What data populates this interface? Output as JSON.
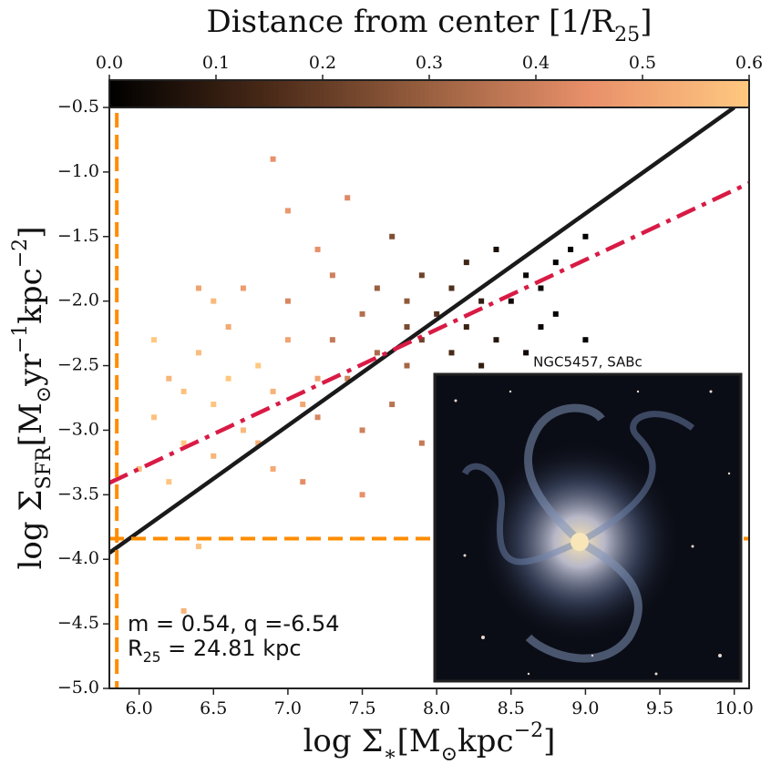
{
  "chart_data": {
    "type": "scatter",
    "colorbar_label": [
      {
        "text": "Distance from center [1/R"
      },
      {
        "text": "25",
        "shift": "sub"
      },
      {
        "text": "]"
      }
    ],
    "xlabel": [
      {
        "text": "log Σ"
      },
      {
        "text": "∗",
        "shift": "sub"
      },
      {
        "text": "[M"
      },
      {
        "text": "⊙",
        "shift": "sub"
      },
      {
        "text": "kpc"
      },
      {
        "text": "−2",
        "shift": "sup"
      },
      {
        "text": "]"
      }
    ],
    "ylabel": [
      {
        "text": "log Σ"
      },
      {
        "text": "SFR",
        "shift": "sub"
      },
      {
        "text": "[M"
      },
      {
        "text": "⊙",
        "shift": "sub"
      },
      {
        "text": "yr"
      },
      {
        "text": "−1",
        "shift": "sup"
      },
      {
        "text": "kpc"
      },
      {
        "text": "−2",
        "shift": "sup"
      },
      {
        "text": "]"
      }
    ],
    "xlim": [
      5.8,
      10.1
    ],
    "ylim": [
      -5.0,
      -0.5
    ],
    "xticks": [
      {
        "value": 6.0,
        "label": "6.0"
      },
      6.5,
      {
        "value": 7.0,
        "label": "7.0"
      },
      7.5,
      {
        "value": 8.0,
        "label": "8.0"
      },
      8.5,
      {
        "value": 9.0,
        "label": "9.0"
      },
      9.5,
      {
        "value": 10.0,
        "label": "10.0"
      }
    ],
    "yticks": [
      {
        "value": -5.0,
        "label": "−5.0"
      },
      {
        "value": -4.5,
        "label": "−4.5"
      },
      {
        "value": -4.0,
        "label": "−4.0"
      },
      {
        "value": -3.5,
        "label": "−3.5"
      },
      {
        "value": -3.0,
        "label": "−3.0"
      },
      {
        "value": -2.5,
        "label": "−2.5"
      },
      {
        "value": -2.0,
        "label": "−2.0"
      },
      {
        "value": -1.5,
        "label": "−1.5"
      },
      {
        "value": -1.0,
        "label": "−1.0"
      },
      {
        "value": -0.5,
        "label": "−0.5"
      }
    ],
    "clim": [
      0.0,
      0.6
    ],
    "cticks": [
      {
        "value": 0.0,
        "label": "0.0"
      },
      0.1,
      0.2,
      0.3,
      0.4,
      0.5,
      0.6
    ],
    "colormap": [
      "#000000",
      "#4a2a18",
      "#9a6040",
      "#e8906a",
      "#ffc880"
    ],
    "series": [
      {
        "x": [
          6.1,
          6.2,
          6.3,
          6.4,
          6.5,
          6.6,
          6.7,
          6.8,
          6.9,
          7.0,
          6.3,
          6.5,
          6.6,
          6.8,
          7.1,
          6.0,
          6.2,
          6.4,
          6.7,
          7.0,
          6.9,
          6.5,
          7.2,
          6.9,
          6.1,
          6.3,
          6.4,
          7.2,
          7.3,
          7.4,
          7.5,
          7.5,
          7.6,
          7.7,
          7.3,
          7.4,
          7.2,
          7.6,
          7.8,
          7.9,
          7.1,
          7.5,
          7.8,
          7.0,
          7.9,
          8.0,
          8.1,
          8.2,
          8.0,
          8.3,
          7.9,
          8.2,
          8.1,
          8.4,
          7.7,
          8.0,
          8.3,
          7.8,
          8.5,
          8.6,
          8.7,
          8.8,
          8.9,
          9.0,
          8.6,
          8.8,
          9.0,
          8.5,
          8.7,
          8.4
        ],
        "y": [
          -2.9,
          -2.6,
          -3.1,
          -2.4,
          -2.8,
          -2.2,
          -3.0,
          -2.5,
          -2.7,
          -2.3,
          -2.7,
          -3.2,
          -2.6,
          -3.1,
          -2.8,
          -3.3,
          -3.4,
          -1.9,
          -1.9,
          -1.3,
          -0.9,
          -2.0,
          -2.6,
          -3.3,
          -2.3,
          -4.4,
          -3.9,
          -2.9,
          -2.3,
          -2.6,
          -2.1,
          -3.0,
          -2.4,
          -2.8,
          -1.8,
          -1.2,
          -1.6,
          -1.9,
          -2.5,
          -3.1,
          -3.4,
          -3.5,
          -2.0,
          -2.0,
          -2.3,
          -2.1,
          -2.4,
          -2.2,
          -2.6,
          -2.0,
          -1.8,
          -1.7,
          -1.9,
          -2.3,
          -1.5,
          -2.9,
          -2.5,
          -2.2,
          -2.0,
          -1.8,
          -2.2,
          -1.7,
          -1.6,
          -1.5,
          -2.4,
          -2.1,
          -2.3,
          -2.6,
          -1.9,
          -1.6
        ],
        "c": [
          0.58,
          0.55,
          0.6,
          0.57,
          0.59,
          0.52,
          0.56,
          0.6,
          0.54,
          0.5,
          0.58,
          0.55,
          0.6,
          0.53,
          0.51,
          0.57,
          0.59,
          0.5,
          0.48,
          0.47,
          0.45,
          0.56,
          0.5,
          0.52,
          0.6,
          0.55,
          0.58,
          0.42,
          0.38,
          0.4,
          0.35,
          0.4,
          0.33,
          0.36,
          0.4,
          0.43,
          0.45,
          0.3,
          0.32,
          0.38,
          0.44,
          0.45,
          0.28,
          0.42,
          0.22,
          0.18,
          0.15,
          0.12,
          0.2,
          0.1,
          0.22,
          0.13,
          0.16,
          0.08,
          0.25,
          0.25,
          0.1,
          0.24,
          0.03,
          0.02,
          0.02,
          0.01,
          0.0,
          0.0,
          0.03,
          0.01,
          0.0,
          0.04,
          0.02,
          0.05
        ]
      }
    ],
    "lines": [
      {
        "color": "#1a1a1a",
        "style": "solid",
        "x": [
          5.8,
          10.0
        ],
        "y": [
          -3.95,
          -0.5
        ]
      },
      {
        "color": "#d81b45",
        "style": "dashdot",
        "x": [
          5.8,
          10.1
        ],
        "y": [
          -3.408,
          -1.086
        ]
      }
    ],
    "hline": {
      "color": "#ff8c00",
      "y": -3.84
    },
    "vline": {
      "color": "#ff8c00",
      "x": 5.85
    },
    "annotations": [
      [
        {
          "text": "m = 0.54, q =-6.54"
        }
      ],
      [
        {
          "text": "R"
        },
        {
          "text": "25",
          "shift": "sub"
        },
        {
          "text": " = 24.81 kpc"
        }
      ]
    ],
    "inset_title": "NGC5457, SABc"
  }
}
